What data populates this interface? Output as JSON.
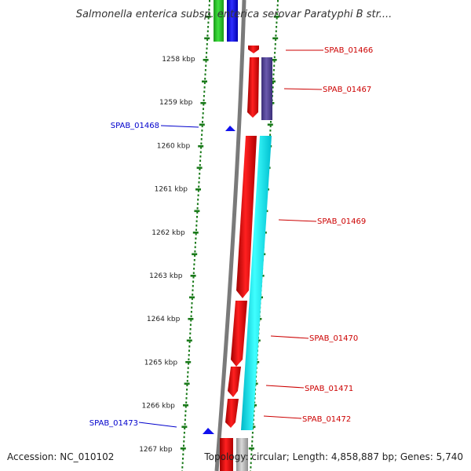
{
  "title": "Salmonella enterica subsp. enterica serovar Paratyphi B str....",
  "footer": {
    "accession": "Accession: NC_010102",
    "info": "Topology: circular; Length: 4,858,887 bp; Genes: 5,740"
  },
  "colors": {
    "background": "#ffffff",
    "backbone": "#808080",
    "forward_gene": "#ff0000",
    "reverse_gene": "#0000ff",
    "cds_track": "#00ffff",
    "ruler_ticks": "#1a7a1a",
    "forward_label": "#cc0000",
    "reverse_label": "#0000cc"
  },
  "ruler": {
    "unit": "kbp",
    "labels": [
      "1258 kbp",
      "1259 kbp",
      "1260 kbp",
      "1261 kbp",
      "1262 kbp",
      "1263 kbp",
      "1264 kbp",
      "1265 kbp",
      "1266 kbp",
      "1267 kbp"
    ]
  },
  "genes": [
    {
      "label": "SPAB_01466",
      "strand": "forward"
    },
    {
      "label": "SPAB_01467",
      "strand": "forward"
    },
    {
      "label": "SPAB_01468",
      "strand": "reverse"
    },
    {
      "label": "SPAB_01469",
      "strand": "forward"
    },
    {
      "label": "SPAB_01470",
      "strand": "forward"
    },
    {
      "label": "SPAB_01471",
      "strand": "forward"
    },
    {
      "label": "SPAB_01472",
      "strand": "forward"
    },
    {
      "label": "SPAB_01473",
      "strand": "reverse"
    }
  ]
}
